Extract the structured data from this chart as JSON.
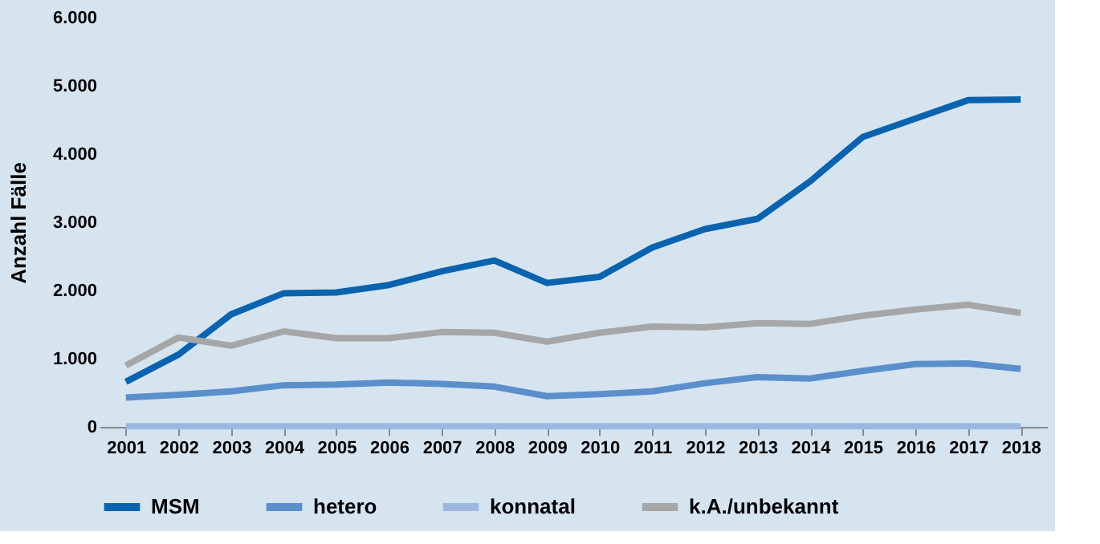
{
  "chart_data": {
    "type": "line",
    "ylabel": "Anzahl Fälle",
    "categories": [
      "2001",
      "2002",
      "2003",
      "2004",
      "2005",
      "2006",
      "2007",
      "2008",
      "2009",
      "2010",
      "2011",
      "2012",
      "2013",
      "2014",
      "2015",
      "2016",
      "2017",
      "2018"
    ],
    "series": [
      {
        "name": "MSM",
        "color": "#0a63ae",
        "values": [
          660,
          1060,
          1650,
          1960,
          1970,
          2080,
          2280,
          2440,
          2110,
          2200,
          2630,
          2900,
          3050,
          3600,
          4250,
          4520,
          4790,
          4800
        ]
      },
      {
        "name": "hetero",
        "color": "#5b8fcc",
        "values": [
          430,
          470,
          520,
          610,
          620,
          650,
          630,
          590,
          450,
          480,
          520,
          640,
          730,
          710,
          820,
          920,
          930,
          850
        ]
      },
      {
        "name": "konnatal",
        "color": "#9cb8e0",
        "values": [
          10,
          10,
          10,
          10,
          10,
          10,
          10,
          10,
          10,
          10,
          10,
          10,
          10,
          10,
          10,
          10,
          10,
          10
        ]
      },
      {
        "name": "k.A./unbekannt",
        "color": "#a6a6a6",
        "values": [
          900,
          1310,
          1190,
          1400,
          1300,
          1300,
          1390,
          1380,
          1250,
          1380,
          1470,
          1460,
          1520,
          1510,
          1630,
          1720,
          1790,
          1670
        ]
      }
    ],
    "ylim": [
      0,
      6000
    ],
    "yticks": [
      {
        "value": 0,
        "label": "0"
      },
      {
        "value": 1000,
        "label": "1.000"
      },
      {
        "value": 2000,
        "label": "2.000"
      },
      {
        "value": 3000,
        "label": "3.000"
      },
      {
        "value": 4000,
        "label": "4.000"
      },
      {
        "value": 5000,
        "label": "5.000"
      },
      {
        "value": 6000,
        "label": "6.000"
      }
    ],
    "grid": false,
    "legend": "bottom",
    "marker": "none",
    "line_style": "solid"
  }
}
